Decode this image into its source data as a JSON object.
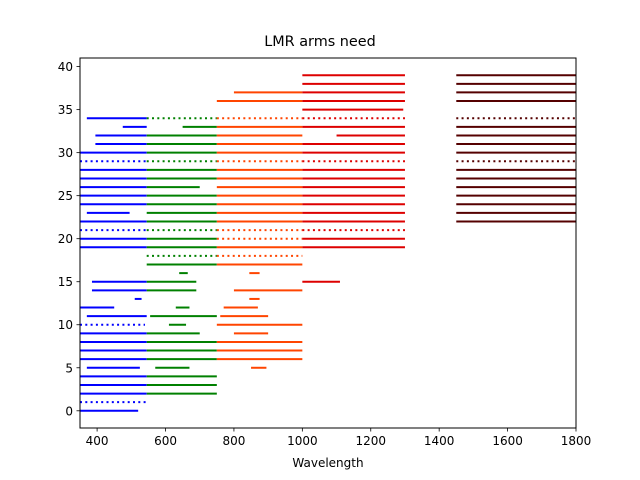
{
  "chart_data": {
    "type": "line",
    "title": "LMR arms need",
    "xlabel": "Wavelength",
    "ylabel": "",
    "xlim": [
      350,
      1800
    ],
    "ylim": [
      -2,
      41
    ],
    "xticks": [
      400,
      600,
      800,
      1000,
      1200,
      1400,
      1600,
      1800
    ],
    "yticks": [
      0,
      5,
      10,
      15,
      20,
      25,
      30,
      35,
      40
    ],
    "grid": false,
    "legend": "none",
    "colors": {
      "blue": "#0000ff",
      "green": "#008000",
      "orangered": "#ff4500",
      "red": "#dd0000",
      "dark": "#550000"
    },
    "series": [
      {
        "color_key": "blue",
        "segments": [
          [
            0,
            350,
            520,
            "solid"
          ],
          [
            1,
            350,
            545,
            "dotted"
          ],
          [
            2,
            350,
            545,
            "solid"
          ],
          [
            3,
            350,
            545,
            "solid"
          ],
          [
            4,
            350,
            545,
            "solid"
          ],
          [
            5,
            370,
            525,
            "solid"
          ],
          [
            6,
            350,
            545,
            "solid"
          ],
          [
            7,
            350,
            545,
            "solid"
          ],
          [
            8,
            350,
            545,
            "solid"
          ],
          [
            9,
            350,
            545,
            "solid"
          ],
          [
            10,
            350,
            540,
            "dotted"
          ],
          [
            11,
            370,
            545,
            "solid"
          ],
          [
            12,
            350,
            450,
            "solid"
          ],
          [
            13,
            510,
            530,
            "solid"
          ],
          [
            14,
            385,
            545,
            "solid"
          ],
          [
            15,
            385,
            545,
            "solid"
          ],
          [
            19,
            350,
            545,
            "solid"
          ],
          [
            20,
            350,
            545,
            "solid"
          ],
          [
            21,
            350,
            545,
            "dotted"
          ],
          [
            22,
            350,
            545,
            "solid"
          ],
          [
            23,
            370,
            495,
            "solid"
          ],
          [
            24,
            350,
            545,
            "solid"
          ],
          [
            25,
            350,
            545,
            "solid"
          ],
          [
            26,
            350,
            545,
            "solid"
          ],
          [
            27,
            350,
            545,
            "solid"
          ],
          [
            28,
            350,
            545,
            "solid"
          ],
          [
            29,
            350,
            545,
            "dotted"
          ],
          [
            30,
            350,
            545,
            "solid"
          ],
          [
            31,
            395,
            545,
            "solid"
          ],
          [
            32,
            395,
            545,
            "solid"
          ],
          [
            33,
            475,
            545,
            "solid"
          ],
          [
            34,
            370,
            545,
            "solid"
          ]
        ]
      },
      {
        "color_key": "green",
        "segments": [
          [
            2,
            545,
            750,
            "solid"
          ],
          [
            3,
            545,
            750,
            "solid"
          ],
          [
            4,
            545,
            750,
            "solid"
          ],
          [
            5,
            570,
            670,
            "solid"
          ],
          [
            6,
            545,
            750,
            "solid"
          ],
          [
            7,
            545,
            750,
            "solid"
          ],
          [
            8,
            545,
            750,
            "solid"
          ],
          [
            9,
            545,
            700,
            "solid"
          ],
          [
            10,
            610,
            660,
            "solid"
          ],
          [
            11,
            555,
            750,
            "solid"
          ],
          [
            12,
            630,
            670,
            "solid"
          ],
          [
            14,
            545,
            690,
            "solid"
          ],
          [
            15,
            545,
            690,
            "solid"
          ],
          [
            16,
            640,
            665,
            "solid"
          ],
          [
            17,
            545,
            750,
            "solid"
          ],
          [
            18,
            545,
            750,
            "dotted"
          ],
          [
            19,
            545,
            750,
            "solid"
          ],
          [
            20,
            545,
            750,
            "solid"
          ],
          [
            21,
            545,
            750,
            "dotted"
          ],
          [
            22,
            545,
            750,
            "solid"
          ],
          [
            23,
            545,
            750,
            "solid"
          ],
          [
            24,
            545,
            750,
            "solid"
          ],
          [
            25,
            545,
            750,
            "solid"
          ],
          [
            26,
            545,
            700,
            "solid"
          ],
          [
            27,
            545,
            750,
            "solid"
          ],
          [
            28,
            545,
            750,
            "solid"
          ],
          [
            29,
            545,
            750,
            "dotted"
          ],
          [
            30,
            545,
            750,
            "solid"
          ],
          [
            31,
            545,
            750,
            "solid"
          ],
          [
            32,
            545,
            750,
            "solid"
          ],
          [
            33,
            650,
            750,
            "solid"
          ],
          [
            34,
            545,
            750,
            "dotted"
          ]
        ]
      },
      {
        "color_key": "orangered",
        "segments": [
          [
            5,
            850,
            895,
            "solid"
          ],
          [
            6,
            750,
            1000,
            "solid"
          ],
          [
            7,
            750,
            1000,
            "solid"
          ],
          [
            8,
            750,
            1000,
            "solid"
          ],
          [
            9,
            800,
            900,
            "solid"
          ],
          [
            10,
            750,
            1000,
            "solid"
          ],
          [
            11,
            760,
            900,
            "solid"
          ],
          [
            12,
            770,
            870,
            "solid"
          ],
          [
            13,
            845,
            875,
            "solid"
          ],
          [
            14,
            800,
            1000,
            "solid"
          ],
          [
            16,
            845,
            875,
            "solid"
          ],
          [
            17,
            750,
            1000,
            "solid"
          ],
          [
            18,
            750,
            1000,
            "dotted"
          ],
          [
            19,
            750,
            1000,
            "solid"
          ],
          [
            20,
            750,
            1000,
            "dotted"
          ],
          [
            21,
            750,
            1000,
            "dotted"
          ],
          [
            22,
            750,
            1000,
            "solid"
          ],
          [
            23,
            750,
            1000,
            "solid"
          ],
          [
            24,
            750,
            1000,
            "solid"
          ],
          [
            25,
            750,
            1000,
            "solid"
          ],
          [
            26,
            750,
            1000,
            "solid"
          ],
          [
            27,
            750,
            1000,
            "solid"
          ],
          [
            28,
            750,
            1000,
            "solid"
          ],
          [
            29,
            750,
            1000,
            "dotted"
          ],
          [
            30,
            750,
            1000,
            "solid"
          ],
          [
            31,
            750,
            1000,
            "solid"
          ],
          [
            32,
            750,
            1000,
            "solid"
          ],
          [
            33,
            750,
            1000,
            "solid"
          ],
          [
            34,
            750,
            1000,
            "dotted"
          ],
          [
            36,
            750,
            1000,
            "solid"
          ],
          [
            37,
            800,
            1000,
            "solid"
          ]
        ]
      },
      {
        "color_key": "red",
        "segments": [
          [
            15,
            1000,
            1110,
            "solid"
          ],
          [
            19,
            1000,
            1300,
            "solid"
          ],
          [
            20,
            1000,
            1300,
            "solid"
          ],
          [
            21,
            1000,
            1300,
            "dotted"
          ],
          [
            22,
            1000,
            1300,
            "solid"
          ],
          [
            23,
            1000,
            1300,
            "solid"
          ],
          [
            24,
            1000,
            1300,
            "solid"
          ],
          [
            25,
            1000,
            1300,
            "solid"
          ],
          [
            26,
            1000,
            1300,
            "solid"
          ],
          [
            27,
            1000,
            1300,
            "solid"
          ],
          [
            28,
            1000,
            1300,
            "solid"
          ],
          [
            29,
            1000,
            1300,
            "dotted"
          ],
          [
            30,
            1000,
            1300,
            "solid"
          ],
          [
            31,
            1000,
            1300,
            "solid"
          ],
          [
            32,
            1100,
            1300,
            "solid"
          ],
          [
            33,
            1000,
            1300,
            "solid"
          ],
          [
            34,
            1000,
            1300,
            "dotted"
          ],
          [
            35,
            1000,
            1295,
            "solid"
          ],
          [
            36,
            1000,
            1300,
            "solid"
          ],
          [
            37,
            1000,
            1300,
            "solid"
          ],
          [
            38,
            1000,
            1300,
            "solid"
          ],
          [
            39,
            1000,
            1300,
            "solid"
          ]
        ]
      },
      {
        "color_key": "dark",
        "segments": [
          [
            22,
            1450,
            1800,
            "solid"
          ],
          [
            23,
            1450,
            1800,
            "solid"
          ],
          [
            24,
            1450,
            1800,
            "solid"
          ],
          [
            25,
            1450,
            1800,
            "solid"
          ],
          [
            26,
            1450,
            1800,
            "solid"
          ],
          [
            27,
            1450,
            1800,
            "solid"
          ],
          [
            28,
            1450,
            1800,
            "solid"
          ],
          [
            29,
            1450,
            1800,
            "dotted"
          ],
          [
            30,
            1450,
            1800,
            "solid"
          ],
          [
            31,
            1450,
            1800,
            "solid"
          ],
          [
            32,
            1450,
            1800,
            "solid"
          ],
          [
            33,
            1450,
            1800,
            "solid"
          ],
          [
            34,
            1450,
            1800,
            "dotted"
          ],
          [
            36,
            1450,
            1800,
            "solid"
          ],
          [
            37,
            1450,
            1800,
            "solid"
          ],
          [
            38,
            1450,
            1800,
            "solid"
          ],
          [
            39,
            1450,
            1800,
            "solid"
          ]
        ]
      }
    ]
  }
}
